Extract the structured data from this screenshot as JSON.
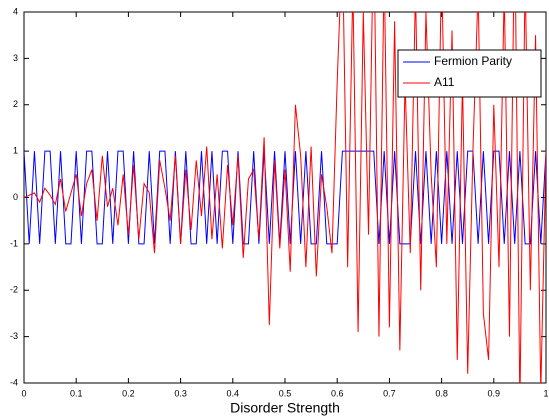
{
  "chart_data": {
    "type": "line",
    "xlabel": "Disorder Strength",
    "x": [
      0,
      0.01,
      0.02,
      0.03,
      0.04,
      0.05,
      0.06,
      0.07,
      0.08,
      0.09,
      0.1,
      0.11,
      0.12,
      0.13,
      0.14,
      0.15,
      0.16,
      0.17,
      0.18,
      0.19,
      0.2,
      0.21,
      0.22,
      0.23,
      0.24,
      0.25,
      0.26,
      0.27,
      0.28,
      0.29,
      0.3,
      0.31,
      0.32,
      0.33,
      0.34,
      0.35,
      0.36,
      0.37,
      0.38,
      0.39,
      0.4,
      0.41,
      0.42,
      0.43,
      0.44,
      0.45,
      0.46,
      0.47,
      0.48,
      0.49,
      0.5,
      0.51,
      0.52,
      0.53,
      0.54,
      0.55,
      0.56,
      0.57,
      0.58,
      0.59,
      0.6,
      0.61,
      0.62,
      0.63,
      0.64,
      0.65,
      0.66,
      0.67,
      0.68,
      0.69,
      0.7,
      0.71,
      0.72,
      0.73,
      0.74,
      0.75,
      0.76,
      0.77,
      0.78,
      0.79,
      0.8,
      0.81,
      0.82,
      0.83,
      0.84,
      0.85,
      0.86,
      0.87,
      0.88,
      0.89,
      0.9,
      0.91,
      0.92,
      0.93,
      0.94,
      0.95,
      0.96,
      0.97,
      0.98,
      0.99,
      1
    ],
    "series": [
      {
        "name": "Fermion Parity",
        "color": "#0000ff",
        "values": [
          1,
          -1,
          1,
          -1,
          1,
          1,
          -1,
          1,
          -1,
          -1,
          1,
          -1,
          1,
          1,
          -1,
          -1,
          1,
          -1,
          1,
          1,
          -1,
          1,
          -1,
          -1,
          1,
          -1,
          1,
          1,
          -1,
          1,
          -1,
          1,
          -1,
          -1,
          1,
          -1,
          1,
          -1,
          1,
          1,
          -1,
          1,
          -1,
          -1,
          1,
          -1,
          1,
          -1,
          1,
          -1,
          1,
          -1,
          1,
          -1,
          1,
          -1,
          -1,
          1,
          -1,
          -1,
          -1,
          1,
          1,
          1,
          1,
          1,
          1,
          1,
          -1,
          1,
          -1,
          1,
          -1,
          -1,
          -1,
          1,
          -1,
          1,
          -1,
          1,
          -1,
          1,
          -1,
          1,
          -1,
          1,
          1,
          -1,
          1,
          -1,
          1,
          1,
          -1,
          1,
          -1,
          1,
          -1,
          -1,
          1,
          -1,
          1
        ]
      },
      {
        "name": "A11",
        "color": "#ff0000",
        "values": [
          0,
          0.05,
          0.1,
          -0.1,
          0.2,
          0.05,
          -0.15,
          0.4,
          -0.3,
          0.1,
          0.5,
          -0.4,
          0.3,
          0.6,
          -0.5,
          0.9,
          -0.2,
          0.2,
          -0.6,
          0.5,
          -0.8,
          0.7,
          -0.9,
          0.3,
          0.1,
          -1.2,
          0.8,
          0.2,
          -0.5,
          0.9,
          -1,
          0.6,
          -0.7,
          0.8,
          -0.4,
          1.1,
          -0.9,
          0.5,
          -1.1,
          0.7,
          -0.6,
          0.9,
          -1.3,
          0.4,
          0.6,
          -0.9,
          1.3,
          -2.75,
          0.8,
          -1.1,
          0.6,
          -1.6,
          2.0,
          0.9,
          -1.5,
          1.1,
          -1.7,
          0.5,
          -0.2,
          -1.2,
          2.5,
          5.5,
          -1.5,
          4.6,
          -2.9,
          4,
          -0.8,
          6,
          -3,
          5,
          -2.8,
          3.8,
          -3.3,
          2.5,
          -1.2,
          4.5,
          -2,
          4,
          0.5,
          -1.5,
          5,
          -1,
          3.6,
          -3.5,
          2.5,
          -3.8,
          1,
          4.5,
          -2.5,
          -3.5,
          2,
          -1.5,
          4.5,
          -3,
          6,
          -4.5,
          4.8,
          -2,
          3.5,
          -4.2,
          1
        ]
      }
    ],
    "xlim": [
      0,
      1
    ],
    "ylim": [
      -4,
      4
    ],
    "xticks": [
      0,
      0.1,
      0.2,
      0.3,
      0.4,
      0.5,
      0.6,
      0.7,
      0.8,
      0.9,
      1
    ],
    "yticks": [
      -4,
      -3,
      -2,
      -1,
      0,
      1,
      2,
      3,
      4
    ],
    "legend": "upper right"
  }
}
